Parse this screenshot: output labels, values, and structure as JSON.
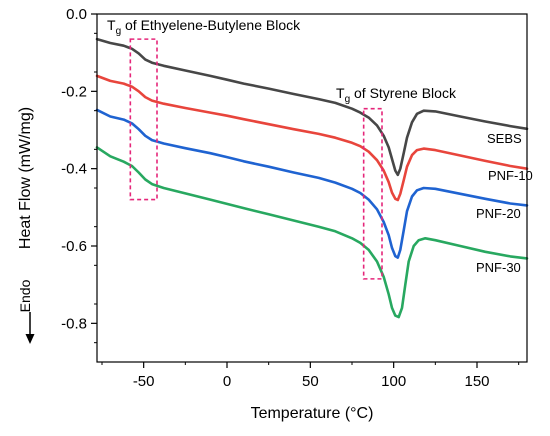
{
  "chart_data": {
    "type": "line",
    "xlabel": "Temperature (°C)",
    "ylabel": "Heat Flow (mW/mg)",
    "xlim": [
      -78,
      180
    ],
    "ylim": [
      -0.9,
      0.0
    ],
    "xticks": [
      -50,
      0,
      50,
      100,
      150
    ],
    "yticks": [
      0.0,
      -0.2,
      -0.4,
      -0.6,
      -0.8
    ],
    "xtick_labels": [
      "-50",
      "0",
      "50",
      "100",
      "150"
    ],
    "ytick_labels": [
      "0.0",
      "-0.2",
      "-0.4",
      "-0.6",
      "-0.8"
    ],
    "grid": false,
    "legend": "none",
    "endo_label": "Endo",
    "annotations": [
      {
        "text": "T_g of Ethyelene-Butylene Block",
        "x_range": [
          -58,
          -42
        ],
        "y_range": [
          -0.065,
          -0.48
        ]
      },
      {
        "text": "T_g of Styrene Block",
        "x_range": [
          82,
          93
        ],
        "y_range": [
          -0.245,
          -0.685
        ]
      }
    ],
    "series": [
      {
        "name": "SEBS",
        "color": "#474747",
        "points": [
          [
            -78,
            -0.065
          ],
          [
            -70,
            -0.075
          ],
          [
            -62,
            -0.082
          ],
          [
            -57,
            -0.09
          ],
          [
            -53,
            -0.102
          ],
          [
            -49,
            -0.118
          ],
          [
            -45,
            -0.126
          ],
          [
            -38,
            -0.134
          ],
          [
            -25,
            -0.146
          ],
          [
            -10,
            -0.16
          ],
          [
            0,
            -0.17
          ],
          [
            10,
            -0.18
          ],
          [
            25,
            -0.193
          ],
          [
            40,
            -0.207
          ],
          [
            55,
            -0.22
          ],
          [
            65,
            -0.23
          ],
          [
            75,
            -0.245
          ],
          [
            80,
            -0.255
          ],
          [
            85,
            -0.268
          ],
          [
            90,
            -0.288
          ],
          [
            94,
            -0.315
          ],
          [
            97,
            -0.345
          ],
          [
            99,
            -0.375
          ],
          [
            101,
            -0.405
          ],
          [
            102.5,
            -0.416
          ],
          [
            104,
            -0.4
          ],
          [
            106,
            -0.36
          ],
          [
            108,
            -0.32
          ],
          [
            111,
            -0.28
          ],
          [
            114,
            -0.258
          ],
          [
            118,
            -0.25
          ],
          [
            125,
            -0.252
          ],
          [
            140,
            -0.265
          ],
          [
            155,
            -0.278
          ],
          [
            170,
            -0.29
          ],
          [
            180,
            -0.297
          ]
        ]
      },
      {
        "name": "PNF-10",
        "color": "#e8453c",
        "points": [
          [
            -78,
            -0.16
          ],
          [
            -70,
            -0.173
          ],
          [
            -62,
            -0.18
          ],
          [
            -57,
            -0.188
          ],
          [
            -53,
            -0.2
          ],
          [
            -49,
            -0.215
          ],
          [
            -45,
            -0.224
          ],
          [
            -38,
            -0.232
          ],
          [
            -25,
            -0.243
          ],
          [
            -10,
            -0.255
          ],
          [
            0,
            -0.263
          ],
          [
            10,
            -0.272
          ],
          [
            25,
            -0.285
          ],
          [
            40,
            -0.298
          ],
          [
            55,
            -0.31
          ],
          [
            65,
            -0.32
          ],
          [
            75,
            -0.333
          ],
          [
            80,
            -0.342
          ],
          [
            85,
            -0.356
          ],
          [
            90,
            -0.378
          ],
          [
            94,
            -0.405
          ],
          [
            97,
            -0.435
          ],
          [
            99,
            -0.462
          ],
          [
            101,
            -0.478
          ],
          [
            102.5,
            -0.481
          ],
          [
            104,
            -0.465
          ],
          [
            106,
            -0.43
          ],
          [
            108,
            -0.395
          ],
          [
            111,
            -0.365
          ],
          [
            114,
            -0.352
          ],
          [
            118,
            -0.348
          ],
          [
            125,
            -0.352
          ],
          [
            140,
            -0.366
          ],
          [
            155,
            -0.38
          ],
          [
            170,
            -0.393
          ],
          [
            180,
            -0.4
          ]
        ]
      },
      {
        "name": "PNF-20",
        "color": "#1f63d1",
        "points": [
          [
            -78,
            -0.248
          ],
          [
            -70,
            -0.265
          ],
          [
            -62,
            -0.273
          ],
          [
            -57,
            -0.283
          ],
          [
            -53,
            -0.298
          ],
          [
            -49,
            -0.315
          ],
          [
            -45,
            -0.326
          ],
          [
            -38,
            -0.335
          ],
          [
            -25,
            -0.347
          ],
          [
            -10,
            -0.36
          ],
          [
            0,
            -0.37
          ],
          [
            10,
            -0.381
          ],
          [
            25,
            -0.395
          ],
          [
            40,
            -0.41
          ],
          [
            55,
            -0.424
          ],
          [
            65,
            -0.436
          ],
          [
            75,
            -0.452
          ],
          [
            80,
            -0.463
          ],
          [
            85,
            -0.48
          ],
          [
            90,
            -0.505
          ],
          [
            94,
            -0.538
          ],
          [
            97,
            -0.572
          ],
          [
            99,
            -0.605
          ],
          [
            101,
            -0.626
          ],
          [
            102.5,
            -0.63
          ],
          [
            104,
            -0.61
          ],
          [
            106,
            -0.56
          ],
          [
            108,
            -0.51
          ],
          [
            111,
            -0.472
          ],
          [
            114,
            -0.456
          ],
          [
            118,
            -0.45
          ],
          [
            125,
            -0.452
          ],
          [
            140,
            -0.465
          ],
          [
            155,
            -0.478
          ],
          [
            170,
            -0.49
          ],
          [
            180,
            -0.495
          ]
        ]
      },
      {
        "name": "PNF-30",
        "color": "#28a860",
        "points": [
          [
            -78,
            -0.345
          ],
          [
            -70,
            -0.368
          ],
          [
            -62,
            -0.382
          ],
          [
            -57,
            -0.393
          ],
          [
            -53,
            -0.41
          ],
          [
            -49,
            -0.428
          ],
          [
            -45,
            -0.44
          ],
          [
            -38,
            -0.45
          ],
          [
            -25,
            -0.464
          ],
          [
            -10,
            -0.48
          ],
          [
            0,
            -0.491
          ],
          [
            10,
            -0.502
          ],
          [
            25,
            -0.518
          ],
          [
            40,
            -0.534
          ],
          [
            55,
            -0.55
          ],
          [
            65,
            -0.562
          ],
          [
            75,
            -0.58
          ],
          [
            80,
            -0.592
          ],
          [
            85,
            -0.61
          ],
          [
            90,
            -0.64
          ],
          [
            94,
            -0.68
          ],
          [
            97,
            -0.725
          ],
          [
            99,
            -0.76
          ],
          [
            101,
            -0.78
          ],
          [
            103,
            -0.784
          ],
          [
            105,
            -0.76
          ],
          [
            107,
            -0.7
          ],
          [
            109,
            -0.64
          ],
          [
            112,
            -0.6
          ],
          [
            115,
            -0.585
          ],
          [
            119,
            -0.58
          ],
          [
            125,
            -0.585
          ],
          [
            140,
            -0.6
          ],
          [
            155,
            -0.615
          ],
          [
            170,
            -0.627
          ],
          [
            180,
            -0.632
          ]
        ]
      }
    ]
  }
}
